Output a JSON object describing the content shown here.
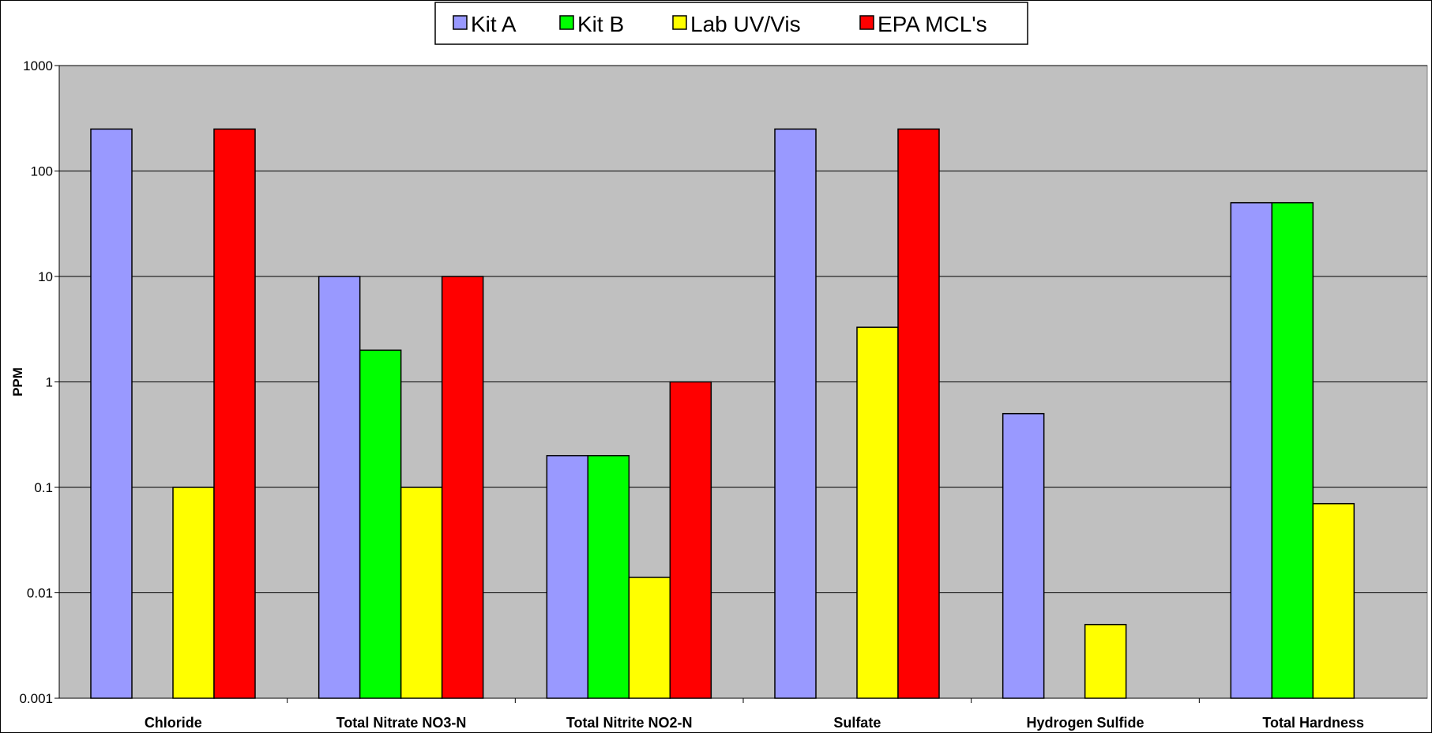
{
  "chart_data": {
    "type": "bar",
    "scale": "log",
    "title": "",
    "xlabel": "",
    "ylabel": "PPM",
    "ylim": [
      0.001,
      1000
    ],
    "y_ticks": [
      "0.001",
      "0.01",
      "0.1",
      "1",
      "10",
      "100",
      "1000"
    ],
    "grid": true,
    "legend_position": "top",
    "plot_background": "#c0c0c0",
    "categories": [
      "Chloride",
      "Total Nitrate NO3-N",
      "Total Nitrite NO2-N",
      "Sulfate",
      "Hydrogen Sulfide",
      "Total Hardness"
    ],
    "series": [
      {
        "name": "Kit A",
        "color": "#9999ff",
        "values": [
          250,
          10,
          0.2,
          250,
          0.5,
          50
        ]
      },
      {
        "name": "Kit B",
        "color": "#00ff00",
        "values": [
          null,
          2,
          0.2,
          null,
          null,
          50
        ]
      },
      {
        "name": "Lab UV/Vis",
        "color": "#ffff00",
        "values": [
          0.1,
          0.1,
          0.014,
          3.3,
          0.005,
          0.07
        ]
      },
      {
        "name": "EPA MCL's",
        "color": "#ff0000",
        "values": [
          250,
          10,
          1,
          250,
          null,
          null
        ]
      }
    ]
  }
}
